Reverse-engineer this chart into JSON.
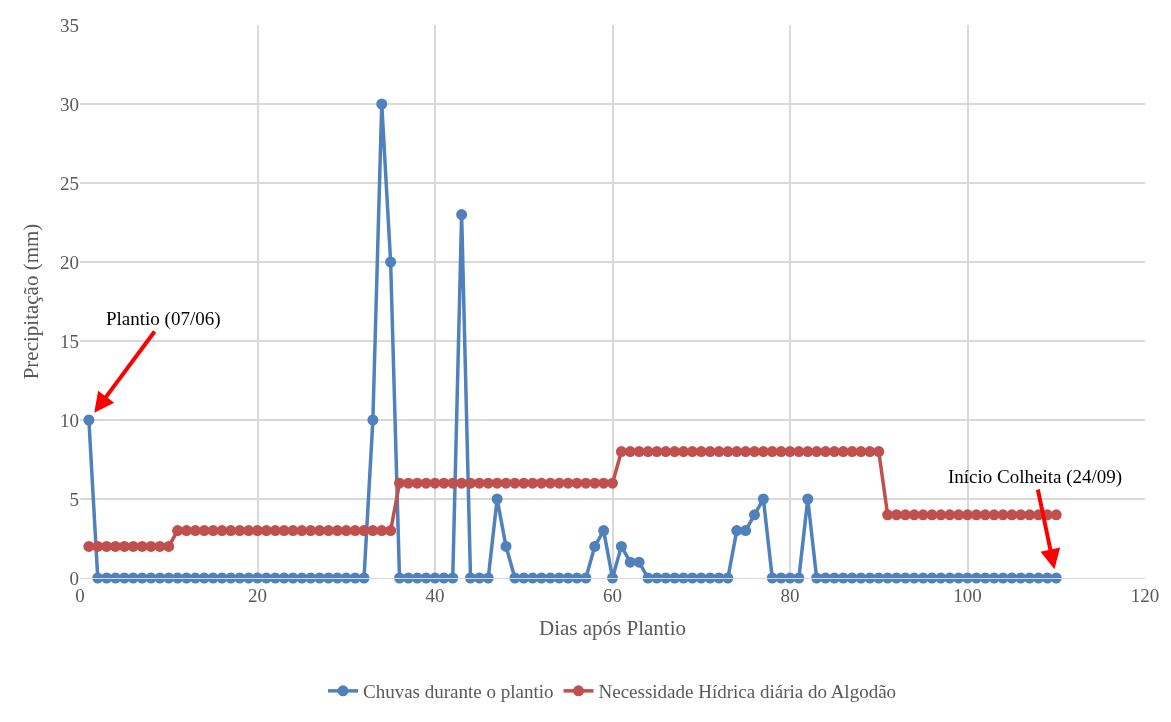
{
  "chart_data": {
    "type": "line",
    "xlabel": "Dias após Plantio",
    "ylabel": "Precipitação (mm)",
    "x": [
      1,
      2,
      3,
      4,
      5,
      6,
      7,
      8,
      9,
      10,
      11,
      12,
      13,
      14,
      15,
      16,
      17,
      18,
      19,
      20,
      21,
      22,
      23,
      24,
      25,
      26,
      27,
      28,
      29,
      30,
      31,
      32,
      33,
      34,
      35,
      36,
      37,
      38,
      39,
      40,
      41,
      42,
      43,
      44,
      45,
      46,
      47,
      48,
      49,
      50,
      51,
      52,
      53,
      54,
      55,
      56,
      57,
      58,
      59,
      60,
      61,
      62,
      63,
      64,
      65,
      66,
      67,
      68,
      69,
      70,
      71,
      72,
      73,
      74,
      75,
      76,
      77,
      78,
      79,
      80,
      81,
      82,
      83,
      84,
      85,
      86,
      87,
      88,
      89,
      90,
      91,
      92,
      93,
      94,
      95,
      96,
      97,
      98,
      99,
      100,
      101,
      102,
      103,
      104,
      105,
      106,
      107,
      108,
      109,
      110
    ],
    "series": [
      {
        "name": "Chuvas durante o plantio",
        "color": "#4f81bd",
        "values": [
          10,
          0,
          0,
          0,
          0,
          0,
          0,
          0,
          0,
          0,
          0,
          0,
          0,
          0,
          0,
          0,
          0,
          0,
          0,
          0,
          0,
          0,
          0,
          0,
          0,
          0,
          0,
          0,
          0,
          0,
          0,
          0,
          10,
          30,
          20,
          0,
          0,
          0,
          0,
          0,
          0,
          0,
          23,
          0,
          0,
          0,
          5,
          2,
          0,
          0,
          0,
          0,
          0,
          0,
          0,
          0,
          0,
          2,
          3,
          0,
          2,
          1,
          1,
          0,
          0,
          0,
          0,
          0,
          0,
          0,
          0,
          0,
          0,
          3,
          3,
          4,
          5,
          0,
          0,
          0,
          0,
          5,
          0,
          0,
          0,
          0,
          0,
          0,
          0,
          0,
          0,
          0,
          0,
          0,
          0,
          0,
          0,
          0,
          0,
          0,
          0,
          0,
          0,
          0,
          0,
          0,
          0,
          0,
          0,
          0
        ]
      },
      {
        "name": "Necessidade Hídrica diária do Algodão",
        "color": "#c0504d",
        "values": [
          2,
          2,
          2,
          2,
          2,
          2,
          2,
          2,
          2,
          2,
          3,
          3,
          3,
          3,
          3,
          3,
          3,
          3,
          3,
          3,
          3,
          3,
          3,
          3,
          3,
          3,
          3,
          3,
          3,
          3,
          3,
          3,
          3,
          3,
          3,
          6,
          6,
          6,
          6,
          6,
          6,
          6,
          6,
          6,
          6,
          6,
          6,
          6,
          6,
          6,
          6,
          6,
          6,
          6,
          6,
          6,
          6,
          6,
          6,
          6,
          8,
          8,
          8,
          8,
          8,
          8,
          8,
          8,
          8,
          8,
          8,
          8,
          8,
          8,
          8,
          8,
          8,
          8,
          8,
          8,
          8,
          8,
          8,
          8,
          8,
          8,
          8,
          8,
          8,
          8,
          4,
          4,
          4,
          4,
          4,
          4,
          4,
          4,
          4,
          4,
          4,
          4,
          4,
          4,
          4,
          4,
          4,
          4,
          4,
          4
        ]
      }
    ],
    "annotations": [
      {
        "text": "Plantio (07/06)",
        "x": 1,
        "y": 10
      },
      {
        "text": "Início Colheita (24/09)",
        "x": 110,
        "y": 0
      }
    ],
    "xlim": [
      0,
      120
    ],
    "xticks": [
      0,
      20,
      40,
      60,
      80,
      100,
      120
    ],
    "ylim": [
      0,
      35
    ],
    "yticks": [
      0,
      5,
      10,
      15,
      20,
      25,
      30,
      35
    ],
    "grid": true,
    "legend": "bottom",
    "marker": "circle",
    "line_style": "solid"
  }
}
